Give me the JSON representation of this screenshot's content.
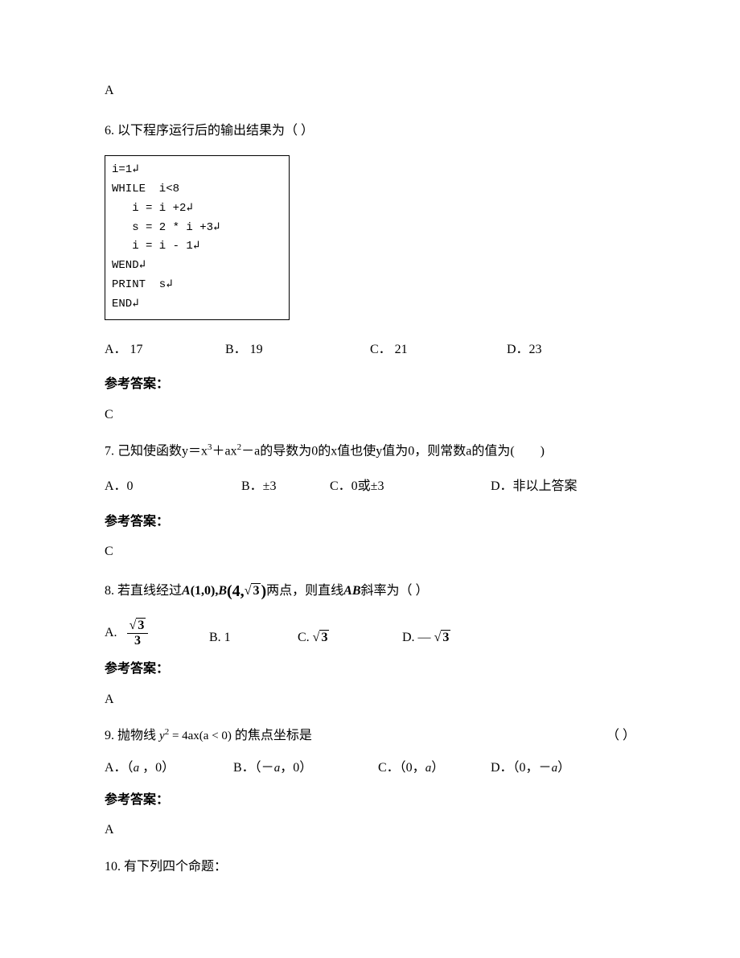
{
  "q5_answer": "A",
  "q6": {
    "text": "6. 以下程序运行后的输出结果为（        ）",
    "code": "i=1↲\nWHILE  i<8\n   i = i +2↲\n   s = 2 * i +3↲\n   i = i - 1↲\nWEND↲\nPRINT  s↲\nEND↲",
    "optA": "A．  17",
    "optB": "B．  19",
    "optC": "C．  21",
    "optD": "D．23",
    "answer_label": "参考答案：",
    "answer": "C"
  },
  "q7": {
    "text_prefix": "7. 己知使函数y＝x",
    "text_mid1": "＋ax",
    "text_mid2": "－a的导数为0的x值也使y值为0，则常数a的值为(　　)",
    "optA": "A．0",
    "optB": "B．±3",
    "optC": "C．0或±3",
    "optD": "D．非以上答案",
    "answer_label": "参考答案：",
    "answer": "C"
  },
  "q8": {
    "prefix": "8. 若直线经过 ",
    "points_A": "A",
    "points_Acoord_l": "(1,0)",
    "comma": ",",
    "points_B": "B",
    "points_Bcoord_l": "(4,",
    "points_Bcoord_r": ")",
    "suffix": " 两点，则直线 ",
    "ab": "AB",
    "suffix2": " 斜率为（   ）",
    "optA_prefix": "A.",
    "optB": "B. 1",
    "optC_prefix": "C.",
    "optD_prefix": "D.  —",
    "sqrt3": "3",
    "frac_num": "3",
    "frac_den": "3",
    "answer_label": "参考答案：",
    "answer": "A"
  },
  "q9": {
    "prefix": "9. 抛物线 ",
    "expr_y": "y",
    "expr_rest": " = 4ax(a < 0)",
    "suffix": " 的焦点坐标是",
    "blank": "（     ）",
    "optA_pre": "A．（",
    "optA_post": " ，0）",
    "optB_pre": "B．（－",
    "optB_post": "，0）",
    "optC_pre": "C．（0，",
    "optC_post": "）",
    "optD_pre": "D．（0，－",
    "optD_post": "）",
    "a": "a",
    "answer_label": "参考答案：",
    "answer": "A"
  },
  "q10": "10. 有下列四个命题："
}
